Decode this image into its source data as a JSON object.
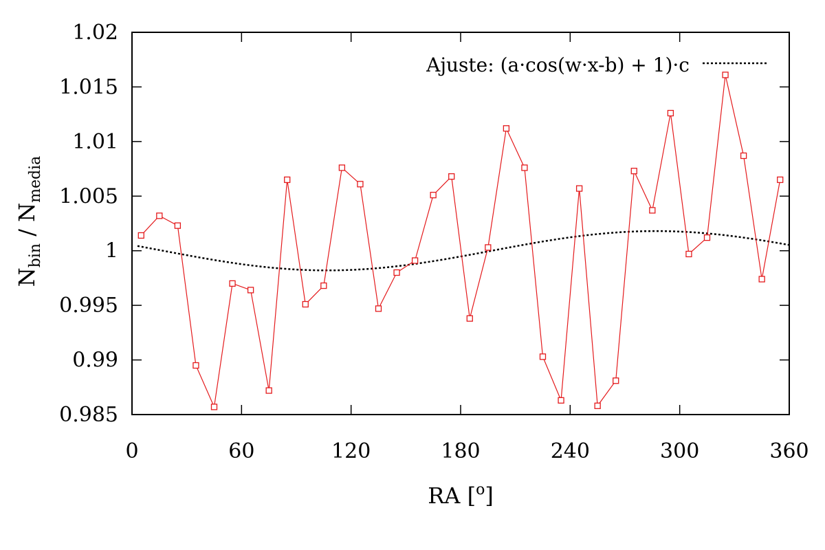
{
  "chart_data": {
    "type": "line",
    "xlabel": "RA [",
    "xlabel_sup": "o",
    "xlabel_end": "]",
    "ylabel_main": "N",
    "ylabel_sub1": "bin",
    "ylabel_sep": " / N",
    "ylabel_sub2": "media",
    "xlim": [
      0,
      360
    ],
    "ylim": [
      0.985,
      1.02
    ],
    "x_ticks": [
      0,
      60,
      120,
      180,
      240,
      300,
      360
    ],
    "x_tick_labels": [
      "0",
      "60",
      "120",
      "180",
      "240",
      "300",
      "360"
    ],
    "y_ticks": [
      0.985,
      0.99,
      0.995,
      1.0,
      1.005,
      1.01,
      1.015,
      1.02
    ],
    "y_tick_labels": [
      "0.985",
      "0.99",
      "0.995",
      "1",
      "1.005",
      "1.01",
      "1.015",
      "1.02"
    ],
    "grid": false,
    "legend_position": "top-right",
    "series": [
      {
        "color": "#e41a1c",
        "marker": "square",
        "x": [
          5,
          15,
          25,
          35,
          45,
          55,
          65,
          75,
          85,
          95,
          105,
          115,
          125,
          135,
          145,
          155,
          165,
          175,
          185,
          195,
          205,
          215,
          225,
          235,
          245,
          255,
          265,
          275,
          285,
          295,
          305,
          315,
          325,
          335,
          345,
          355
        ],
        "y": [
          1.0014,
          1.0032,
          1.0023,
          0.9895,
          0.9857,
          0.997,
          0.9964,
          0.9872,
          1.0065,
          0.9951,
          0.9968,
          1.0076,
          1.0061,
          0.9947,
          0.998,
          0.9991,
          1.0051,
          1.0068,
          0.9938,
          1.0003,
          1.0112,
          1.0076,
          0.9903,
          0.9863,
          1.0057,
          0.9858,
          0.9881,
          1.0073,
          1.0037,
          1.0126,
          0.9997,
          1.0012,
          1.0161,
          1.0087,
          0.9974,
          1.0065
        ]
      },
      {
        "name": "Ajuste: (a·cos(w·x-b) + 1)·c",
        "color": "#000000",
        "style": "dotted",
        "fit": {
          "a": 0.0018,
          "w_deg": 1,
          "b_deg": 287,
          "c": 1.0
        }
      }
    ]
  }
}
